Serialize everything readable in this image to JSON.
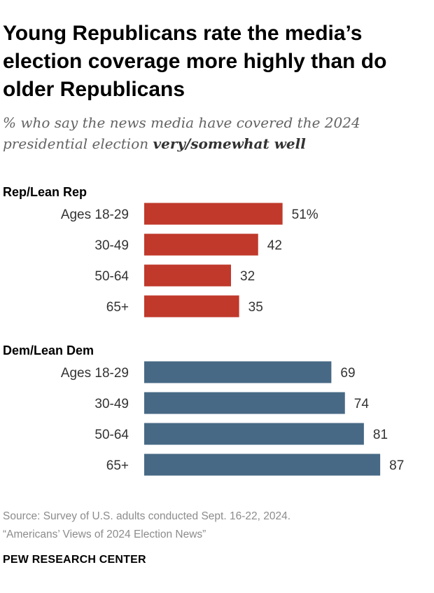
{
  "title": "Young Republicans rate the media’s election coverage more highly than do older Republicans",
  "subtitle": {
    "lead": "% who say the news media have covered the 2024 presidential election ",
    "emphasis": "very/somewhat well"
  },
  "colors": {
    "rep": "#c0392b",
    "dem": "#476985",
    "label": "#333333",
    "group": "#000000"
  },
  "chart_data": {
    "type": "bar",
    "orientation": "horizontal",
    "unit": "%",
    "xlim": [
      0,
      100
    ],
    "groups": [
      {
        "name": "Rep/Lean Rep",
        "color": "#c0392b",
        "categories": [
          "Ages 18-29",
          "30-49",
          "50-64",
          "65+"
        ],
        "values": [
          51,
          42,
          32,
          35
        ],
        "value_labels": [
          "51%",
          "42",
          "32",
          "35"
        ]
      },
      {
        "name": "Dem/Lean Dem",
        "color": "#476985",
        "categories": [
          "Ages 18-29",
          "30-49",
          "50-64",
          "65+"
        ],
        "values": [
          69,
          74,
          81,
          87
        ],
        "value_labels": [
          "69",
          "74",
          "81",
          "87"
        ]
      }
    ]
  },
  "source": {
    "line1": "Source: Survey of U.S. adults conducted Sept. 16-22, 2024.",
    "line2": "“Americans’ Views of 2024 Election News”"
  },
  "brand": "PEW RESEARCH CENTER"
}
